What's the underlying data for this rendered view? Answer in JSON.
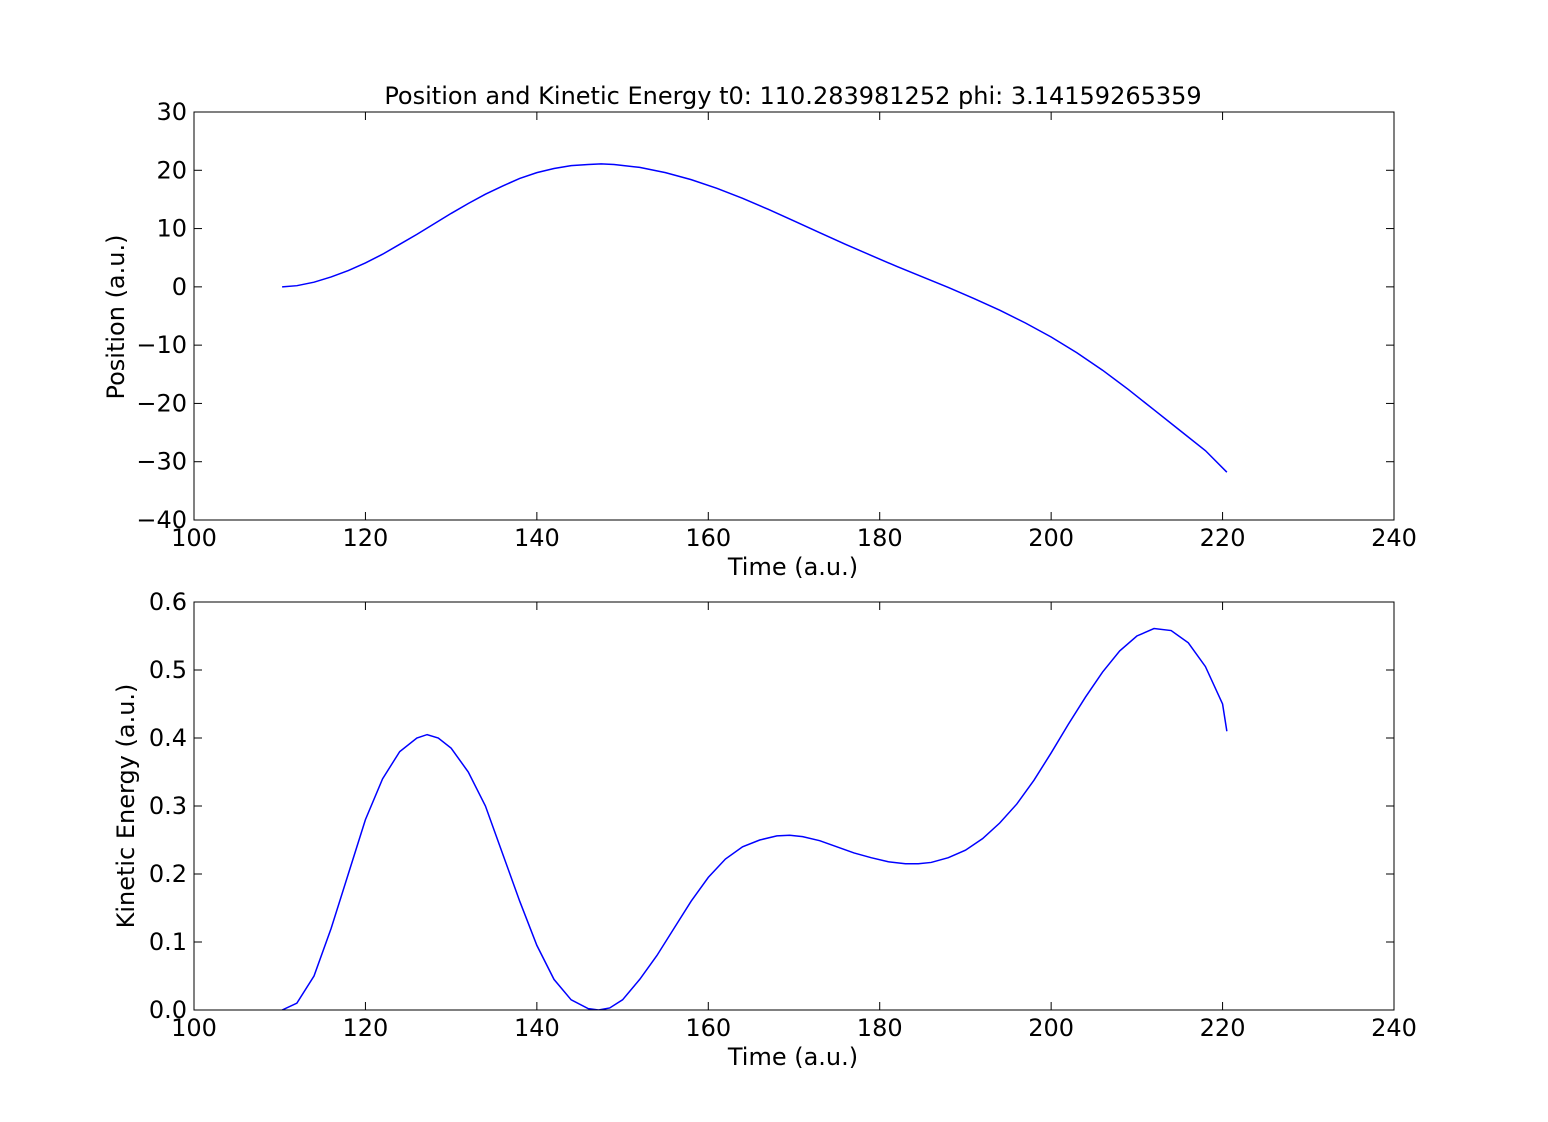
{
  "chart_data": [
    {
      "type": "line",
      "title": "Position and Kinetic Energy t0: 110.283981252 phi: 3.14159265359",
      "xlabel": "Time (a.u.)",
      "ylabel": "Position (a.u.)",
      "xlim": [
        100,
        240
      ],
      "ylim": [
        -40,
        30
      ],
      "xticks": [
        100,
        120,
        140,
        160,
        180,
        200,
        220,
        240
      ],
      "yticks": [
        30,
        20,
        10,
        0,
        -10,
        -20,
        -30,
        -40
      ],
      "xtick_labels": [
        "100",
        "120",
        "140",
        "160",
        "180",
        "200",
        "220",
        "240"
      ],
      "ytick_labels": [
        "30",
        "20",
        "10",
        "0",
        "−10",
        "−20",
        "−30",
        "−40"
      ],
      "grid": false,
      "series": [
        {
          "color": "#0000ff",
          "x": [
            110.28,
            112,
            114,
            116,
            118,
            120,
            122,
            124,
            126,
            128,
            130,
            132,
            134,
            136,
            138,
            140,
            142,
            144,
            146,
            147.5,
            149,
            152,
            155,
            158,
            161,
            164,
            167,
            170,
            173,
            176,
            179,
            182,
            185,
            188,
            191,
            194,
            197,
            200,
            203,
            206,
            209,
            212,
            215,
            218,
            220.5
          ],
          "y": [
            0,
            0.2,
            0.8,
            1.7,
            2.8,
            4.1,
            5.6,
            7.3,
            9.0,
            10.8,
            12.6,
            14.3,
            15.9,
            17.3,
            18.6,
            19.6,
            20.3,
            20.8,
            21.0,
            21.1,
            21.0,
            20.5,
            19.6,
            18.4,
            16.9,
            15.2,
            13.3,
            11.3,
            9.3,
            7.3,
            5.4,
            3.5,
            1.7,
            -0.1,
            -2.0,
            -4.0,
            -6.2,
            -8.6,
            -11.3,
            -14.3,
            -17.6,
            -21.1,
            -24.6,
            -28.1,
            -31.8
          ]
        }
      ]
    },
    {
      "type": "line",
      "xlabel": "Time (a.u.)",
      "ylabel": "Kinetic Energy (a.u.)",
      "xlim": [
        100,
        240
      ],
      "ylim": [
        0,
        0.6
      ],
      "xticks": [
        100,
        120,
        140,
        160,
        180,
        200,
        220,
        240
      ],
      "yticks": [
        0.6,
        0.5,
        0.4,
        0.3,
        0.2,
        0.1,
        0.0
      ],
      "xtick_labels": [
        "100",
        "120",
        "140",
        "160",
        "180",
        "200",
        "220",
        "240"
      ],
      "ytick_labels": [
        "0.6",
        "0.5",
        "0.4",
        "0.3",
        "0.2",
        "0.1",
        "0.0"
      ],
      "grid": false,
      "series": [
        {
          "color": "#0000ff",
          "x": [
            110.28,
            112,
            114,
            116,
            118,
            120,
            122,
            124,
            126,
            127.2,
            128.5,
            130,
            132,
            134,
            136,
            138,
            140,
            142,
            144,
            146,
            147.2,
            148.5,
            150,
            152,
            154,
            156,
            158,
            160,
            162,
            164,
            166,
            168,
            169.5,
            171,
            173,
            175,
            177,
            179,
            181,
            183,
            184.5,
            186,
            188,
            190,
            192,
            194,
            196,
            198,
            200,
            202,
            204,
            206,
            208,
            210,
            212,
            214,
            216,
            218,
            220,
            220.5
          ],
          "y": [
            0,
            0.01,
            0.05,
            0.12,
            0.2,
            0.28,
            0.34,
            0.38,
            0.4,
            0.405,
            0.4,
            0.385,
            0.35,
            0.3,
            0.23,
            0.16,
            0.095,
            0.045,
            0.015,
            0.002,
            0,
            0.003,
            0.015,
            0.045,
            0.08,
            0.12,
            0.16,
            0.195,
            0.222,
            0.24,
            0.25,
            0.256,
            0.257,
            0.255,
            0.249,
            0.24,
            0.231,
            0.224,
            0.218,
            0.215,
            0.215,
            0.217,
            0.224,
            0.235,
            0.252,
            0.275,
            0.303,
            0.338,
            0.378,
            0.42,
            0.46,
            0.497,
            0.528,
            0.55,
            0.561,
            0.558,
            0.54,
            0.505,
            0.45,
            0.41
          ]
        }
      ]
    }
  ]
}
